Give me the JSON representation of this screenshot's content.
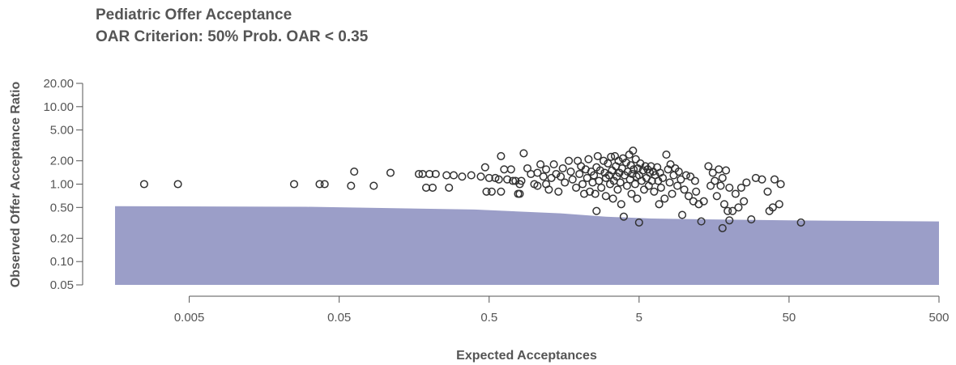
{
  "chart_data": {
    "type": "scatter",
    "title": "Pediatric Offer Acceptance",
    "subtitle": "OAR Criterion: 50% Prob. OAR < 0.35",
    "xlabel": "Expected Acceptances",
    "ylabel": "Observed Offer Acceptance Ratio",
    "x_scale": "log",
    "y_scale": "log",
    "xlim": [
      0.0016,
      500
    ],
    "ylim": [
      0.05,
      20
    ],
    "x_ticks": [
      0.005,
      0.05,
      0.5,
      5,
      50,
      500
    ],
    "x_tick_labels": [
      "0.005",
      "0.05",
      "0.5",
      "5",
      "50",
      "500"
    ],
    "y_ticks": [
      0.05,
      0.1,
      0.2,
      0.5,
      1,
      2,
      5,
      10,
      20
    ],
    "y_tick_labels": [
      "0.05",
      "0.10",
      "0.20",
      "0.50",
      "1.00",
      "2.00",
      "5.00",
      "10.00",
      "20.00"
    ],
    "band": {
      "color": "#9b9ec8",
      "lower": 0.05,
      "upper_x": [
        0.0016,
        0.03,
        0.4,
        1.5,
        3,
        6,
        15,
        50,
        500
      ],
      "upper_y": [
        0.52,
        0.51,
        0.47,
        0.42,
        0.38,
        0.36,
        0.35,
        0.34,
        0.33
      ]
    },
    "grid": false,
    "legend": "none",
    "points": [
      [
        0.0025,
        1.0
      ],
      [
        0.0042,
        1.0
      ],
      [
        0.025,
        1.0
      ],
      [
        0.037,
        1.0
      ],
      [
        0.04,
        1.0
      ],
      [
        0.06,
        0.95
      ],
      [
        0.063,
        1.45
      ],
      [
        0.085,
        0.95
      ],
      [
        0.11,
        1.4
      ],
      [
        0.17,
        1.35
      ],
      [
        0.18,
        1.35
      ],
      [
        0.19,
        0.9
      ],
      [
        0.2,
        1.35
      ],
      [
        0.21,
        0.9
      ],
      [
        0.22,
        1.35
      ],
      [
        0.26,
        1.3
      ],
      [
        0.27,
        0.9
      ],
      [
        0.29,
        1.3
      ],
      [
        0.33,
        1.25
      ],
      [
        0.38,
        1.3
      ],
      [
        0.44,
        1.25
      ],
      [
        0.47,
        1.65
      ],
      [
        0.48,
        0.8
      ],
      [
        0.5,
        1.2
      ],
      [
        0.52,
        0.8
      ],
      [
        0.55,
        1.2
      ],
      [
        0.58,
        1.15
      ],
      [
        0.6,
        2.3
      ],
      [
        0.6,
        0.8
      ],
      [
        0.63,
        1.55
      ],
      [
        0.66,
        1.15
      ],
      [
        0.7,
        1.55
      ],
      [
        0.72,
        1.1
      ],
      [
        0.75,
        1.1
      ],
      [
        0.78,
        0.75
      ],
      [
        0.8,
        1.0
      ],
      [
        0.8,
        0.75
      ],
      [
        0.82,
        1.1
      ],
      [
        0.85,
        2.5
      ],
      [
        0.9,
        1.6
      ],
      [
        0.95,
        1.35
      ],
      [
        1.0,
        1.0
      ],
      [
        1.05,
        1.4
      ],
      [
        1.05,
        0.95
      ],
      [
        1.1,
        1.8
      ],
      [
        1.15,
        1.25
      ],
      [
        1.2,
        1.55
      ],
      [
        1.2,
        1.0
      ],
      [
        1.25,
        0.85
      ],
      [
        1.3,
        1.2
      ],
      [
        1.35,
        1.8
      ],
      [
        1.4,
        1.35
      ],
      [
        1.45,
        0.8
      ],
      [
        1.5,
        1.25
      ],
      [
        1.55,
        1.6
      ],
      [
        1.6,
        1.05
      ],
      [
        1.7,
        2.0
      ],
      [
        1.75,
        1.45
      ],
      [
        1.8,
        1.15
      ],
      [
        1.9,
        0.9
      ],
      [
        1.95,
        2.0
      ],
      [
        2.0,
        1.35
      ],
      [
        2.05,
        1.7
      ],
      [
        2.1,
        1.0
      ],
      [
        2.15,
        0.75
      ],
      [
        2.2,
        1.55
      ],
      [
        2.25,
        1.2
      ],
      [
        2.3,
        2.1
      ],
      [
        2.35,
        0.8
      ],
      [
        2.4,
        1.45
      ],
      [
        2.45,
        1.05
      ],
      [
        2.5,
        1.3
      ],
      [
        2.55,
        0.75
      ],
      [
        2.6,
        1.65
      ],
      [
        2.6,
        0.45
      ],
      [
        2.65,
        2.3
      ],
      [
        2.7,
        1.1
      ],
      [
        2.75,
        1.5
      ],
      [
        2.8,
        0.9
      ],
      [
        2.9,
        2.0
      ],
      [
        2.95,
        1.4
      ],
      [
        3.0,
        1.2
      ],
      [
        3.0,
        0.7
      ],
      [
        3.1,
        1.85
      ],
      [
        3.15,
        1.3
      ],
      [
        3.2,
        1.0
      ],
      [
        3.25,
        2.25
      ],
      [
        3.3,
        1.5
      ],
      [
        3.35,
        0.65
      ],
      [
        3.4,
        1.1
      ],
      [
        3.45,
        2.3
      ],
      [
        3.5,
        1.7
      ],
      [
        3.55,
        1.25
      ],
      [
        3.6,
        0.85
      ],
      [
        3.65,
        2.0
      ],
      [
        3.7,
        1.4
      ],
      [
        3.75,
        1.05
      ],
      [
        3.8,
        0.55
      ],
      [
        3.85,
        1.6
      ],
      [
        3.9,
        2.15
      ],
      [
        3.95,
        0.38
      ],
      [
        4.0,
        1.3
      ],
      [
        4.1,
        1.9
      ],
      [
        4.15,
        0.95
      ],
      [
        4.2,
        1.45
      ],
      [
        4.3,
        2.4
      ],
      [
        4.35,
        1.15
      ],
      [
        4.4,
        1.75
      ],
      [
        4.45,
        0.75
      ],
      [
        4.5,
        1.35
      ],
      [
        4.55,
        2.7
      ],
      [
        4.6,
        1.55
      ],
      [
        4.7,
        1.0
      ],
      [
        4.75,
        2.1
      ],
      [
        4.8,
        1.25
      ],
      [
        4.85,
        0.65
      ],
      [
        4.9,
        1.6
      ],
      [
        5.0,
        1.3
      ],
      [
        5.0,
        0.32
      ],
      [
        5.1,
        1.85
      ],
      [
        5.2,
        1.1
      ],
      [
        5.3,
        1.5
      ],
      [
        5.4,
        0.85
      ],
      [
        5.5,
        1.7
      ],
      [
        5.6,
        1.2
      ],
      [
        5.7,
        1.55
      ],
      [
        5.8,
        0.95
      ],
      [
        5.9,
        1.4
      ],
      [
        6.0,
        1.7
      ],
      [
        6.1,
        1.1
      ],
      [
        6.2,
        1.45
      ],
      [
        6.3,
        0.8
      ],
      [
        6.4,
        1.3
      ],
      [
        6.6,
        1.65
      ],
      [
        6.7,
        1.1
      ],
      [
        6.8,
        0.55
      ],
      [
        6.9,
        1.4
      ],
      [
        7.0,
        0.9
      ],
      [
        7.2,
        1.2
      ],
      [
        7.4,
        0.65
      ],
      [
        7.6,
        2.4
      ],
      [
        7.8,
        1.55
      ],
      [
        8.0,
        1.05
      ],
      [
        8.1,
        1.8
      ],
      [
        8.3,
        0.75
      ],
      [
        8.5,
        1.3
      ],
      [
        8.7,
        1.6
      ],
      [
        9.0,
        0.95
      ],
      [
        9.2,
        1.45
      ],
      [
        9.5,
        1.15
      ],
      [
        9.7,
        0.4
      ],
      [
        10.0,
        0.85
      ],
      [
        10.3,
        1.3
      ],
      [
        10.7,
        0.7
      ],
      [
        11.0,
        1.25
      ],
      [
        11.5,
        0.6
      ],
      [
        11.8,
        1.1
      ],
      [
        12.0,
        0.8
      ],
      [
        12.5,
        0.55
      ],
      [
        13.0,
        0.33
      ],
      [
        13.5,
        0.6
      ],
      [
        14.5,
        1.7
      ],
      [
        15.0,
        0.95
      ],
      [
        15.5,
        1.4
      ],
      [
        16.0,
        1.1
      ],
      [
        16.5,
        0.7
      ],
      [
        17.0,
        1.55
      ],
      [
        17.5,
        0.95
      ],
      [
        18.0,
        1.2
      ],
      [
        18.5,
        0.55
      ],
      [
        19.0,
        1.5
      ],
      [
        19.5,
        0.45
      ],
      [
        20.0,
        0.9
      ],
      [
        21.0,
        0.45
      ],
      [
        22.0,
        0.75
      ],
      [
        23.0,
        0.5
      ],
      [
        24.0,
        0.9
      ],
      [
        25.0,
        0.6
      ],
      [
        26.0,
        1.05
      ],
      [
        18.0,
        0.27
      ],
      [
        20.0,
        0.34
      ],
      [
        28.0,
        0.35
      ],
      [
        30.0,
        1.2
      ],
      [
        33.0,
        1.15
      ],
      [
        36.0,
        0.8
      ],
      [
        37.0,
        0.45
      ],
      [
        39.0,
        0.5
      ],
      [
        40.0,
        1.15
      ],
      [
        43.0,
        0.55
      ],
      [
        44.0,
        1.0
      ],
      [
        60.0,
        0.32
      ]
    ]
  }
}
